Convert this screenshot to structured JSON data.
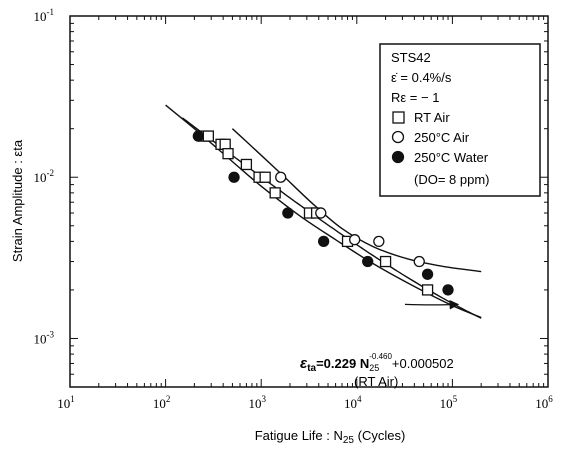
{
  "chart_data": {
    "type": "scatter",
    "title": "",
    "xlabel_prefix": "Fatigue Life : N",
    "xlabel_sub": "25",
    "xlabel_suffix": " (Cycles)",
    "ylabel": "Strain Amplitude : εta",
    "x_scale": "log",
    "y_scale": "log",
    "xlim": [
      10,
      1000000
    ],
    "ylim": [
      0.0005,
      0.1
    ],
    "x_ticks": [
      {
        "value": 10,
        "base": "10",
        "exp": "1"
      },
      {
        "value": 100,
        "base": "10",
        "exp": "2"
      },
      {
        "value": 1000,
        "base": "10",
        "exp": "3"
      },
      {
        "value": 10000,
        "base": "10",
        "exp": "4"
      },
      {
        "value": 100000,
        "base": "10",
        "exp": "5"
      },
      {
        "value": 1000000,
        "base": "10",
        "exp": "6"
      }
    ],
    "y_ticks": [
      {
        "value": 0.001,
        "base": "10",
        "exp": "-3"
      },
      {
        "value": 0.01,
        "base": "10",
        "exp": "-2"
      },
      {
        "value": 0.1,
        "base": "10",
        "exp": "-1"
      }
    ],
    "legend": {
      "placement": "top-right",
      "lines": [
        "STS42",
        "ε̇ = 0.4%/s",
        "Rε = − 1"
      ],
      "entries": [
        {
          "marker": "square-open",
          "label": "RT Air"
        },
        {
          "marker": "circle-open",
          "label": "250°C Air"
        },
        {
          "marker": "circle-filled",
          "label": "250°C Water"
        }
      ],
      "note": "(DO= 8 ppm)"
    },
    "series": [
      {
        "name": "RT Air",
        "marker": "square-open",
        "x": [
          250,
          280,
          380,
          420,
          450,
          700,
          950,
          1100,
          1400,
          3200,
          3800,
          8000,
          20000,
          55000
        ],
        "y": [
          0.018,
          0.018,
          0.016,
          0.016,
          0.014,
          0.012,
          0.01,
          0.01,
          0.008,
          0.006,
          0.006,
          0.004,
          0.003,
          0.002
        ]
      },
      {
        "name": "250°C Air",
        "marker": "circle-open",
        "x": [
          1600,
          4200,
          9500,
          17000,
          45000
        ],
        "y": [
          0.01,
          0.006,
          0.0041,
          0.004,
          0.003
        ]
      },
      {
        "name": "250°C Water",
        "marker": "circle-filled",
        "x": [
          220,
          520,
          1900,
          4500,
          13000,
          55000,
          90000
        ],
        "y": [
          0.018,
          0.01,
          0.006,
          0.004,
          0.003,
          0.0025,
          0.002
        ]
      }
    ],
    "curves": [
      {
        "name": "fit-250C-air",
        "x": [
          500,
          900,
          1700,
          3500,
          7000,
          15000,
          35000,
          80000,
          200000
        ],
        "y": [
          0.02,
          0.0145,
          0.0102,
          0.0068,
          0.0048,
          0.0037,
          0.0031,
          0.0028,
          0.0026
        ]
      },
      {
        "name": "fit-rt-air",
        "a": 0.229,
        "b": -0.46,
        "c": 0.000502,
        "x_from": 150,
        "x_to": 200000
      },
      {
        "name": "fit-250C-water",
        "x": [
          100,
          200,
          500,
          1000,
          2500,
          6000,
          15000,
          40000,
          100000,
          200000
        ],
        "y": [
          0.028,
          0.02,
          0.0125,
          0.0088,
          0.0058,
          0.0041,
          0.0029,
          0.0021,
          0.0016,
          0.00135
        ]
      }
    ],
    "annotation": {
      "lhs": "ε",
      "lhs_sub": "ta",
      "rhs_a": "=0.229 N",
      "rhs_sub": "25",
      "rhs_sup": "-0.460",
      "rhs_b": "+0.000502",
      "line2": "(RT Air)",
      "arrow_to": {
        "x": 120000,
        "y": 0.00165
      }
    },
    "grid": false
  }
}
